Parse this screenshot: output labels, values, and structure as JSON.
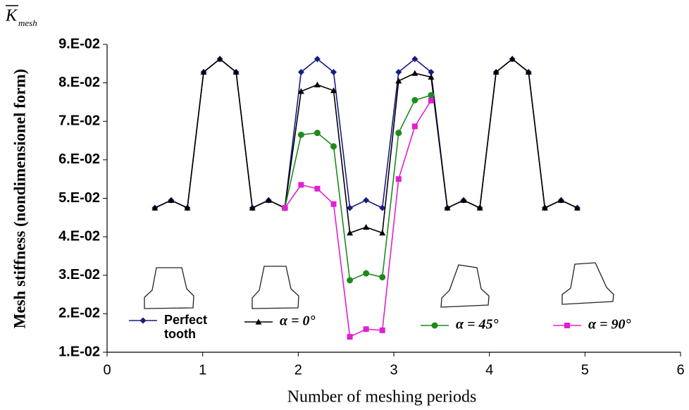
{
  "chart_data": {
    "type": "line",
    "y_symbol": {
      "base": "K",
      "subscript": "mesh"
    },
    "x_label": "Number of meshing periods",
    "y_label": "Mesh stiffness (nondimensionel form)",
    "xlim": [
      0,
      6
    ],
    "xticks": [
      0,
      1,
      2,
      3,
      4,
      5,
      6
    ],
    "ylim": [
      0.01,
      0.09
    ],
    "yticks": [
      {
        "value": 0.01,
        "label": "1.E-02"
      },
      {
        "value": 0.02,
        "label": "2.E-02"
      },
      {
        "value": 0.03,
        "label": "3.E-02"
      },
      {
        "value": 0.04,
        "label": "4.E-02"
      },
      {
        "value": 0.05,
        "label": "5.E-02"
      },
      {
        "value": 0.06,
        "label": "6.E-02"
      },
      {
        "value": 0.07,
        "label": "7.E-02"
      },
      {
        "value": 0.08,
        "label": "8.E-02"
      },
      {
        "value": 0.09,
        "label": "9.E-02"
      }
    ],
    "series": [
      {
        "name": "Perfect tooth",
        "color": "#1a1a80",
        "marker": "diamond",
        "x": [
          0.5,
          0.67,
          0.84,
          1.01,
          1.18,
          1.35,
          1.52,
          1.69,
          1.86,
          2.03,
          2.2,
          2.37,
          2.54,
          2.71,
          2.88,
          3.05,
          3.22,
          3.39,
          3.56,
          3.73,
          3.9,
          4.07,
          4.24,
          4.41,
          4.58,
          4.75,
          4.92
        ],
        "values": [
          0.0475,
          0.0495,
          0.0475,
          0.0828,
          0.0862,
          0.0828,
          0.0475,
          0.0495,
          0.0475,
          0.0828,
          0.0862,
          0.0828,
          0.0475,
          0.0495,
          0.0475,
          0.0828,
          0.0862,
          0.0828,
          0.0475,
          0.0495,
          0.0475,
          0.0828,
          0.0862,
          0.0828,
          0.0475,
          0.0495,
          0.0475
        ]
      },
      {
        "name": "α = 0°",
        "color": "#000000",
        "marker": "triangle",
        "x": [
          0.5,
          0.67,
          0.84,
          1.01,
          1.18,
          1.35,
          1.52,
          1.69,
          1.86,
          2.03,
          2.2,
          2.37,
          2.54,
          2.71,
          2.88,
          3.05,
          3.22,
          3.39,
          3.56,
          3.73,
          3.9,
          4.07,
          4.24,
          4.41,
          4.58,
          4.75,
          4.92
        ],
        "values": [
          0.0475,
          0.0495,
          0.0475,
          0.0828,
          0.0862,
          0.0828,
          0.0475,
          0.0495,
          0.0475,
          0.0778,
          0.0795,
          0.078,
          0.041,
          0.0425,
          0.041,
          0.0805,
          0.0825,
          0.0815,
          0.0475,
          0.0495,
          0.0475,
          0.0828,
          0.0862,
          0.0828,
          0.0475,
          0.0495,
          0.0475
        ]
      },
      {
        "name": "α = 45°",
        "color": "#1e8a1e",
        "marker": "circle",
        "x": [
          1.86,
          2.03,
          2.2,
          2.37,
          2.54,
          2.71,
          2.88,
          3.05,
          3.22,
          3.39
        ],
        "values": [
          0.0475,
          0.0665,
          0.067,
          0.0635,
          0.0287,
          0.0305,
          0.0295,
          0.067,
          0.0755,
          0.0768
        ]
      },
      {
        "name": "α = 90°",
        "color": "#e020d0",
        "marker": "square",
        "x": [
          1.86,
          2.03,
          2.2,
          2.37,
          2.54,
          2.71,
          2.88,
          3.05,
          3.22,
          3.39
        ],
        "values": [
          0.0475,
          0.0535,
          0.0525,
          0.0485,
          0.014,
          0.016,
          0.0157,
          0.055,
          0.0687,
          0.0754
        ]
      }
    ]
  }
}
